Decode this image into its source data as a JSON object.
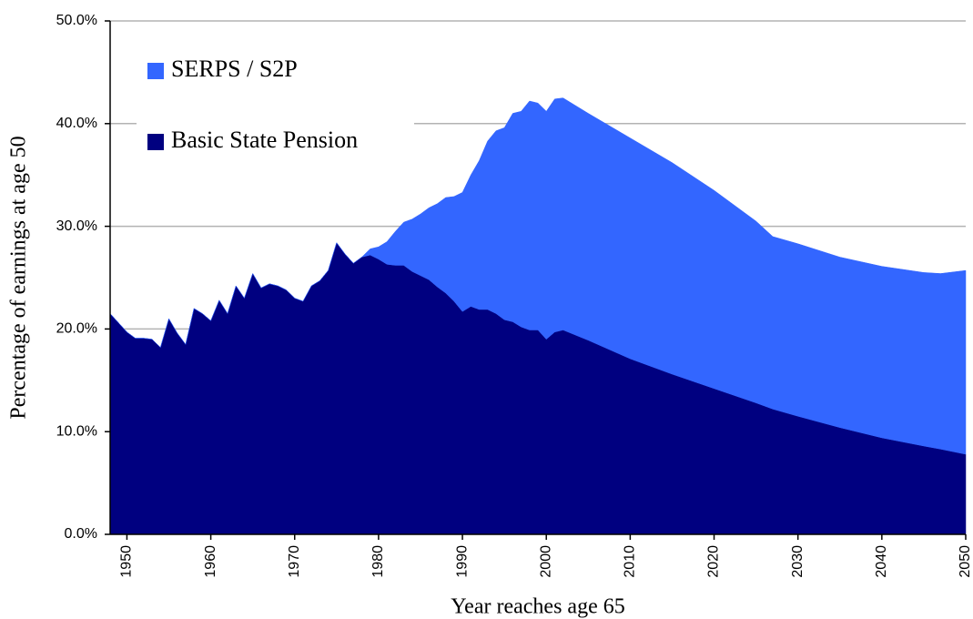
{
  "chart_data": {
    "type": "stacked_area",
    "x_label": "Year reaches age 65",
    "y_label": "Percentage of earnings at age 50",
    "x": [
      1948,
      1949,
      1950,
      1951,
      1952,
      1953,
      1954,
      1955,
      1956,
      1957,
      1958,
      1959,
      1960,
      1961,
      1962,
      1963,
      1964,
      1965,
      1966,
      1967,
      1968,
      1969,
      1970,
      1971,
      1972,
      1973,
      1974,
      1975,
      1976,
      1977,
      1978,
      1979,
      1980,
      1981,
      1982,
      1983,
      1984,
      1985,
      1986,
      1987,
      1988,
      1989,
      1990,
      1991,
      1992,
      1993,
      1994,
      1995,
      1996,
      1997,
      1998,
      1999,
      2000,
      2001,
      2002,
      2005,
      2010,
      2015,
      2020,
      2025,
      2027,
      2030,
      2035,
      2040,
      2045,
      2047,
      2050
    ],
    "series": [
      {
        "name": "Basic State Pension",
        "color": "#000080",
        "values": [
          21.5,
          20.6,
          19.7,
          19.1,
          19.1,
          19.0,
          18.2,
          21.0,
          19.6,
          18.5,
          22.0,
          21.5,
          20.8,
          22.8,
          21.5,
          24.2,
          23.0,
          25.4,
          24.0,
          24.4,
          24.2,
          23.8,
          23.0,
          22.7,
          24.2,
          24.7,
          25.7,
          28.4,
          27.3,
          26.4,
          27.0,
          27.2,
          26.8,
          26.3,
          26.2,
          26.2,
          25.6,
          25.2,
          24.8,
          24.1,
          23.5,
          22.7,
          21.7,
          22.2,
          21.9,
          21.9,
          21.5,
          20.9,
          20.7,
          20.2,
          19.9,
          19.9,
          19.0,
          19.7,
          19.9,
          18.9,
          17.1,
          15.6,
          14.2,
          12.8,
          12.2,
          11.5,
          10.4,
          9.4,
          8.6,
          8.3,
          7.8
        ]
      },
      {
        "name": "SERPS / S2P",
        "color": "#3366ff",
        "values": [
          0,
          0,
          0,
          0,
          0,
          0,
          0,
          0,
          0,
          0,
          0,
          0,
          0,
          0,
          0,
          0,
          0,
          0,
          0,
          0,
          0,
          0,
          0,
          0,
          0,
          0,
          0,
          0,
          0,
          0,
          0,
          0.6,
          1.2,
          2.2,
          3.3,
          4.2,
          5.1,
          6.0,
          7.0,
          8.1,
          9.3,
          10.2,
          11.6,
          12.8,
          14.5,
          16.4,
          17.8,
          18.7,
          20.3,
          21.0,
          22.3,
          22.1,
          22.2,
          22.7,
          22.6,
          22.1,
          21.5,
          20.6,
          19.3,
          17.7,
          16.8,
          16.8,
          16.6,
          16.7,
          16.9,
          17.1,
          17.9
        ]
      }
    ],
    "xlim": [
      1948,
      2050
    ],
    "xticks": [
      1950,
      1960,
      1970,
      1980,
      1990,
      2000,
      2010,
      2020,
      2030,
      2040,
      2050
    ],
    "ylim": [
      0,
      50
    ],
    "yticks": [
      {
        "value": 0,
        "label": "0.0%"
      },
      {
        "value": 10,
        "label": "10.0%"
      },
      {
        "value": 20,
        "label": "20.0%"
      },
      {
        "value": 30,
        "label": "30.0%"
      },
      {
        "value": 40,
        "label": "40.0%"
      },
      {
        "value": 50,
        "label": "50.0%"
      }
    ],
    "grid": true,
    "legend": "upper-left"
  }
}
